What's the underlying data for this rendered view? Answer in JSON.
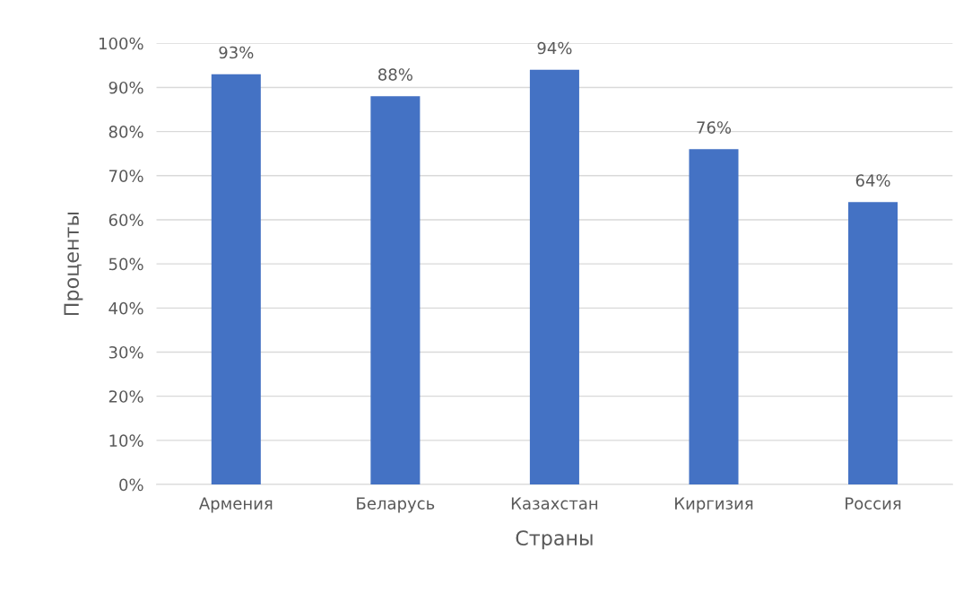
{
  "chart_data": {
    "type": "bar",
    "xlabel": "Страны",
    "ylabel": "Проценты",
    "categories": [
      "Армения",
      "Беларусь",
      "Казахстан",
      "Киргизия",
      "Россия"
    ],
    "values": [
      93,
      88,
      94,
      76,
      64
    ],
    "color": "#4472c4",
    "value_labels": [
      "93%",
      "88%",
      "94%",
      "76%",
      "64%"
    ],
    "ylim": [
      0,
      100
    ],
    "yticks": [
      {
        "value": 0,
        "label": "0%"
      },
      {
        "value": 10,
        "label": "10%"
      },
      {
        "value": 20,
        "label": "20%"
      },
      {
        "value": 30,
        "label": "30%"
      },
      {
        "value": 40,
        "label": "40%"
      },
      {
        "value": 50,
        "label": "50%"
      },
      {
        "value": 60,
        "label": "60%"
      },
      {
        "value": 70,
        "label": "70%"
      },
      {
        "value": 80,
        "label": "80%"
      },
      {
        "value": 90,
        "label": "90%"
      },
      {
        "value": 100,
        "label": "100%"
      }
    ],
    "grid": "y"
  }
}
